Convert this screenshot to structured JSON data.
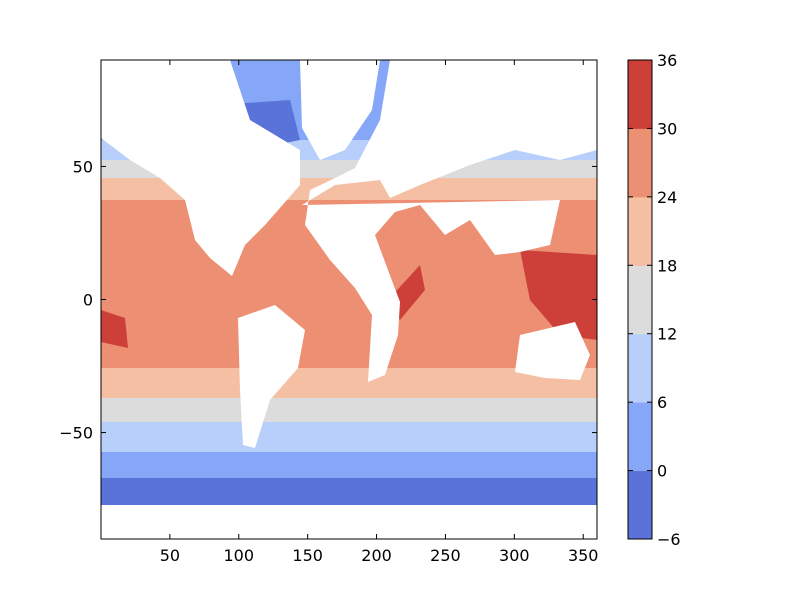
{
  "chart_data": {
    "type": "heatmap",
    "title": "",
    "xlabel": "",
    "ylabel": "",
    "xlim": [
      0,
      360
    ],
    "ylim": [
      -90,
      90
    ],
    "x_ticks": [
      50,
      100,
      150,
      200,
      250,
      300,
      350
    ],
    "y_ticks": [
      50,
      0,
      -50
    ],
    "colorbar": {
      "levels": [
        -6,
        0,
        6,
        12,
        18,
        24,
        30,
        36
      ],
      "tick_labels": [
        "36",
        "30",
        "24",
        "18",
        "12",
        "6",
        "0",
        "−6"
      ],
      "colors": [
        "#5a73d8",
        "#86a6f7",
        "#b7cffa",
        "#dcdcdc",
        "#f4bfa3",
        "#ec8f72",
        "#cd4039"
      ]
    },
    "land_color": "#ffffff",
    "grid": false
  }
}
